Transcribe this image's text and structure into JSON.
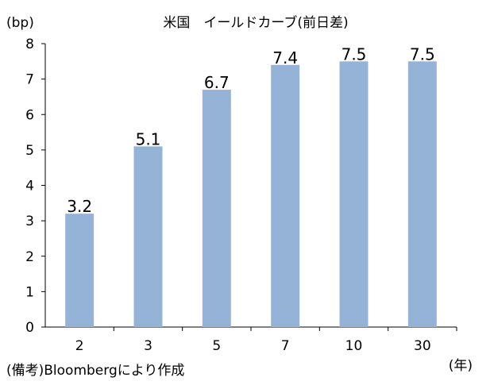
{
  "chart_data": {
    "type": "bar",
    "title": "米国　イールドカーブ(前日差)",
    "ylabel": "(bp)",
    "xlabel": "(年)",
    "categories": [
      "2",
      "3",
      "5",
      "7",
      "10",
      "30"
    ],
    "values": [
      3.2,
      5.1,
      6.7,
      7.4,
      7.5,
      7.5
    ],
    "data_labels": [
      "3.2",
      "5.1",
      "6.7",
      "7.4",
      "7.5",
      "7.5"
    ],
    "ylim": [
      0,
      8
    ],
    "yticks": [
      0,
      1,
      2,
      3,
      4,
      5,
      6,
      7,
      8
    ],
    "grid": false,
    "legend": "none",
    "bar_color": "#95b3d7",
    "source_note": "(備考)Bloombergにより作成"
  }
}
